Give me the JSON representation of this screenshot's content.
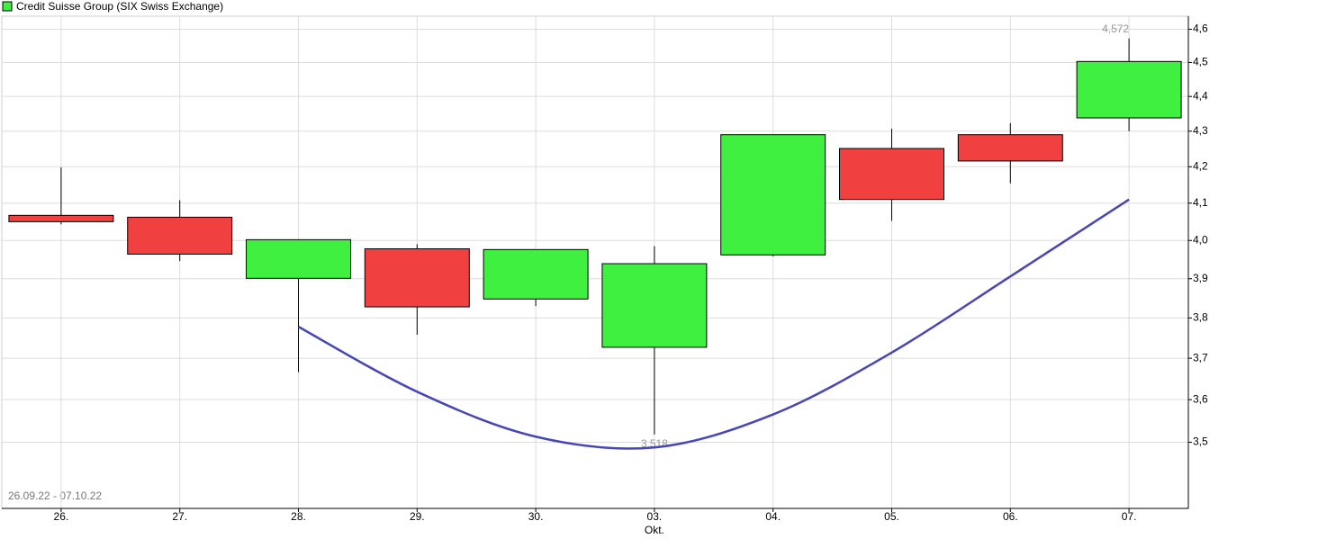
{
  "chart_data": {
    "type": "candlestick",
    "date_range": "26.09.22 - 07.10.22",
    "categories": [
      "26.",
      "27.",
      "28.",
      "29.",
      "30.",
      "03.",
      "04.",
      "05.",
      "06.",
      "07."
    ],
    "month_labels": [
      null,
      null,
      null,
      null,
      null,
      "Okt.",
      null,
      null,
      null,
      null
    ],
    "series": [
      {
        "name": "Credit Suisse Group (SIX Swiss Exchange)",
        "type": "candlestick",
        "open": [
          4.067,
          4.062,
          3.901,
          3.978,
          3.848,
          3.727,
          3.962,
          4.251,
          4.29,
          4.338
        ],
        "high": [
          4.198,
          4.108,
          4.002,
          3.99,
          3.976,
          3.985,
          4.29,
          4.307,
          4.323,
          4.572
        ],
        "low": [
          4.043,
          3.946,
          3.666,
          3.758,
          3.83,
          3.518,
          3.958,
          4.052,
          4.154,
          4.3
        ],
        "close": [
          4.05,
          3.964,
          4.002,
          3.828,
          3.976,
          3.939,
          4.29,
          4.11,
          4.216,
          4.503
        ],
        "up_color": "#40f040",
        "down_color": "#f04040"
      },
      {
        "type": "line",
        "color": "#4646b8",
        "values": [
          null,
          null,
          3.778,
          3.619,
          3.513,
          3.488,
          3.565,
          3.714,
          3.906,
          4.11
        ]
      }
    ],
    "high_label": {
      "value": 4.572,
      "label": "4,572"
    },
    "low_label": {
      "value": 3.518,
      "label": "3,518"
    },
    "ylim": [
      3.35,
      4.64
    ],
    "log_scale": true,
    "grid": true,
    "yticks": [
      {
        "value": 3.5,
        "label": "3,5"
      },
      {
        "value": 3.6,
        "label": "3,6"
      },
      {
        "value": 3.7,
        "label": "3,7"
      },
      {
        "value": 3.8,
        "label": "3,8"
      },
      {
        "value": 3.9,
        "label": "3,9"
      },
      {
        "value": 4.0,
        "label": "4,0"
      },
      {
        "value": 4.1,
        "label": "4,1"
      },
      {
        "value": 4.2,
        "label": "4,2"
      },
      {
        "value": 4.3,
        "label": "4,3"
      },
      {
        "value": 4.4,
        "label": "4,4"
      },
      {
        "value": 4.5,
        "label": "4,5"
      },
      {
        "value": 4.6,
        "label": "4,6"
      }
    ]
  }
}
